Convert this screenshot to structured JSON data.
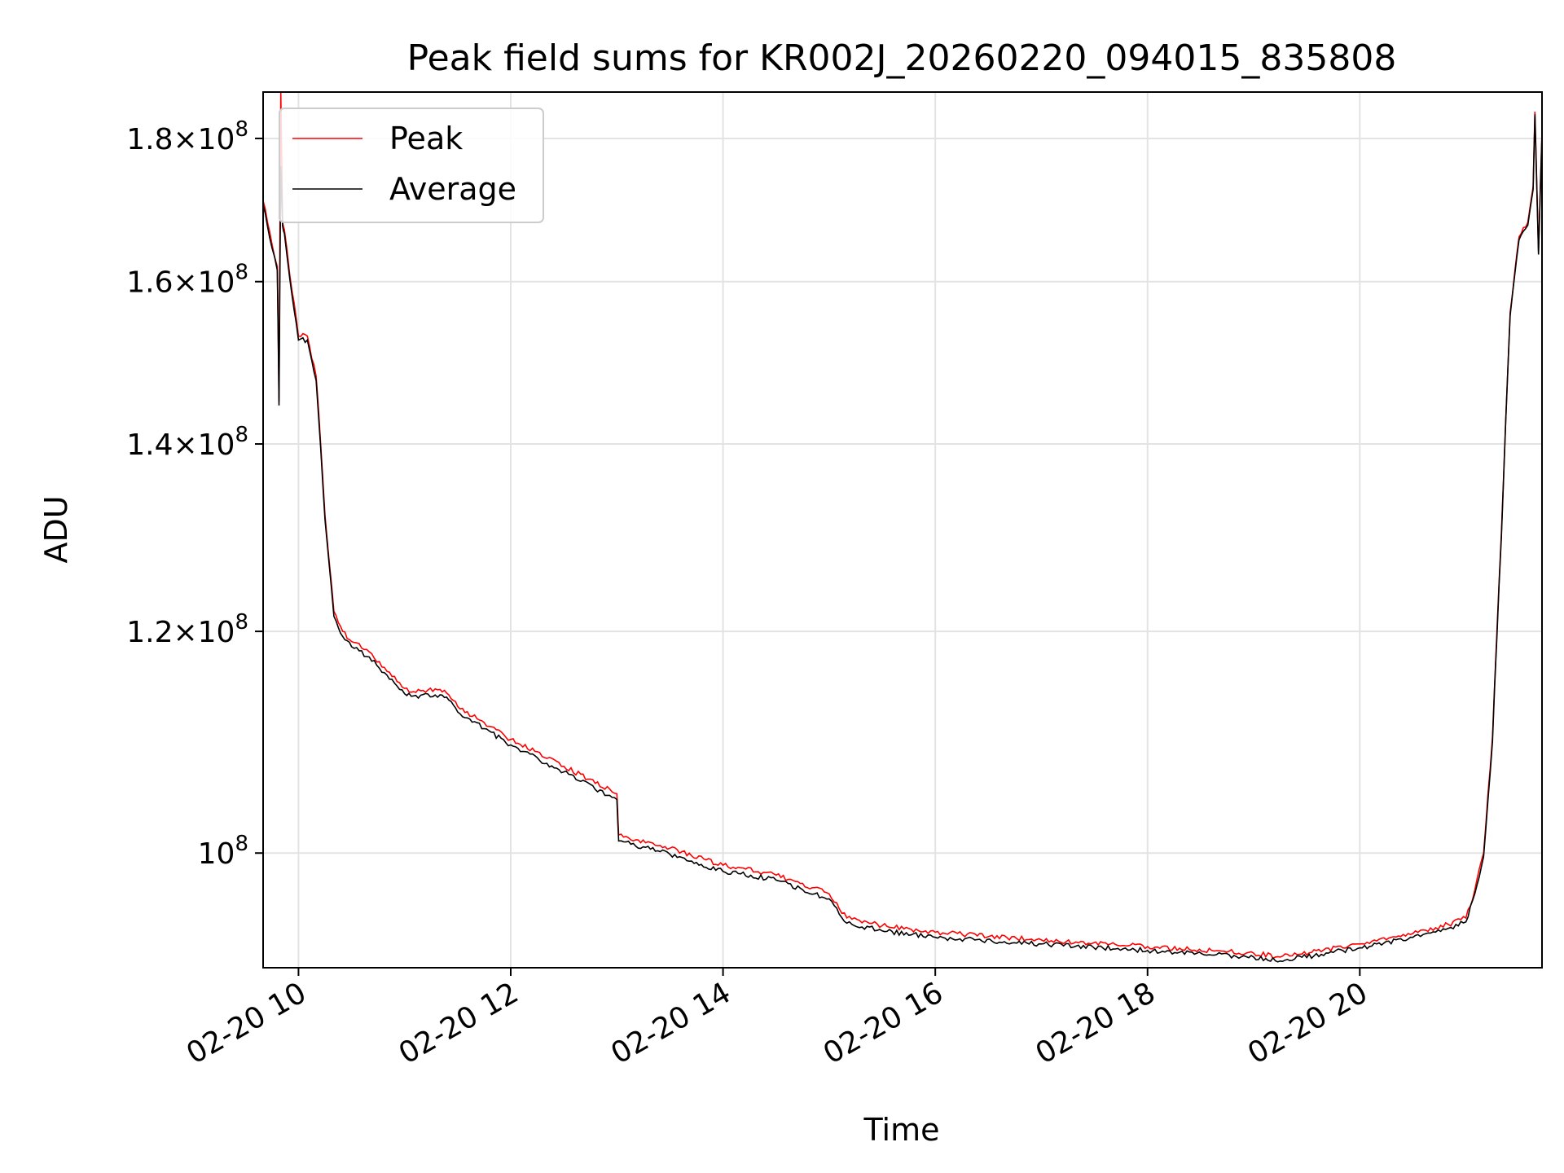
{
  "chart_data": {
    "type": "line",
    "title": "Peak field sums for KR002J_20260220_094015_835808",
    "xlabel": "Time",
    "ylabel": "ADU",
    "y_scale": "log",
    "grid": true,
    "legend_position": "top-left",
    "xlim": [
      "2026-02-20 09:40",
      "2026-02-20 21:43"
    ],
    "ylim": [
      91000000,
      187000000
    ],
    "x_ticks": [
      {
        "value": "2026-02-20 10:00",
        "label": "02-20 10"
      },
      {
        "value": "2026-02-20 12:00",
        "label": "02-20 12"
      },
      {
        "value": "2026-02-20 14:00",
        "label": "02-20 14"
      },
      {
        "value": "2026-02-20 16:00",
        "label": "02-20 16"
      },
      {
        "value": "2026-02-20 18:00",
        "label": "02-20 18"
      },
      {
        "value": "2026-02-20 20:00",
        "label": "02-20 20"
      }
    ],
    "y_ticks": [
      {
        "value": 100000000,
        "mantissa": "",
        "exponent": "8"
      },
      {
        "value": 120000000,
        "mantissa": "1.2",
        "exponent": "8"
      },
      {
        "value": 140000000,
        "mantissa": "1.4",
        "exponent": "8"
      },
      {
        "value": 160000000,
        "mantissa": "1.6",
        "exponent": "8"
      },
      {
        "value": 180000000,
        "mantissa": "1.8",
        "exponent": "8"
      }
    ],
    "x": [
      "2026-02-20 09:40",
      "2026-02-20 09:45",
      "2026-02-20 09:48",
      "2026-02-20 09:49",
      "2026-02-20 09:50",
      "2026-02-20 09:51",
      "2026-02-20 09:52",
      "2026-02-20 09:55",
      "2026-02-20 10:00",
      "2026-02-20 10:05",
      "2026-02-20 10:10",
      "2026-02-20 10:15",
      "2026-02-20 10:20",
      "2026-02-20 10:25",
      "2026-02-20 10:30",
      "2026-02-20 10:40",
      "2026-02-20 11:00",
      "2026-02-20 11:05",
      "2026-02-20 11:20",
      "2026-02-20 11:25",
      "2026-02-20 11:30",
      "2026-02-20 12:00",
      "2026-02-20 12:30",
      "2026-02-20 13:00",
      "2026-02-20 13:01",
      "2026-02-20 13:30",
      "2026-02-20 14:00",
      "2026-02-20 14:10",
      "2026-02-20 14:30",
      "2026-02-20 15:00",
      "2026-02-20 15:10",
      "2026-02-20 15:30",
      "2026-02-20 16:00",
      "2026-02-20 17:00",
      "2026-02-20 18:00",
      "2026-02-20 19:00",
      "2026-02-20 19:15",
      "2026-02-20 20:00",
      "2026-02-20 20:30",
      "2026-02-20 20:50",
      "2026-02-20 21:00",
      "2026-02-20 21:05",
      "2026-02-20 21:10",
      "2026-02-20 21:15",
      "2026-02-20 21:20",
      "2026-02-20 21:25",
      "2026-02-20 21:30",
      "2026-02-20 21:35",
      "2026-02-20 21:38",
      "2026-02-20 21:39",
      "2026-02-20 21:41",
      "2026-02-20 21:43"
    ],
    "series": [
      {
        "name": "Peak",
        "color": "#ff0000",
        "values": [
          171000000,
          165000000,
          162000000,
          145000000,
          187000000,
          168000000,
          167000000,
          161000000,
          153000000,
          153000000,
          148000000,
          132000000,
          122000000,
          120000000,
          119000000,
          118000000,
          114500000,
          114200000,
          114400000,
          113900000,
          112800000,
          109800000,
          107400000,
          105000000,
          101500000,
          100400000,
          99000000,
          98800000,
          98200000,
          96700000,
          94800000,
          94200000,
          93700000,
          93100000,
          92600000,
          92100000,
          91800000,
          92800000,
          93600000,
          94300000,
          94800000,
          97000000,
          100000000,
          110000000,
          130000000,
          156000000,
          166000000,
          168000000,
          173000000,
          184000000,
          164000000,
          181000000
        ]
      },
      {
        "name": "Average",
        "color": "#000000",
        "values": [
          170500000,
          164500000,
          161500000,
          144500000,
          176000000,
          167500000,
          166500000,
          160500000,
          152500000,
          152500000,
          147500000,
          131500000,
          121500000,
          119500000,
          118500000,
          117500000,
          114000000,
          113800000,
          113900000,
          113400000,
          112300000,
          109300000,
          106900000,
          104500000,
          101000000,
          99900000,
          98500000,
          98300000,
          97800000,
          96300000,
          94400000,
          93800000,
          93300000,
          92800000,
          92300000,
          91800000,
          91500000,
          92500000,
          93300000,
          94000000,
          94500000,
          96700000,
          99700000,
          109600000,
          129600000,
          155600000,
          165600000,
          167600000,
          172600000,
          183600000,
          163600000,
          180600000
        ]
      }
    ]
  }
}
